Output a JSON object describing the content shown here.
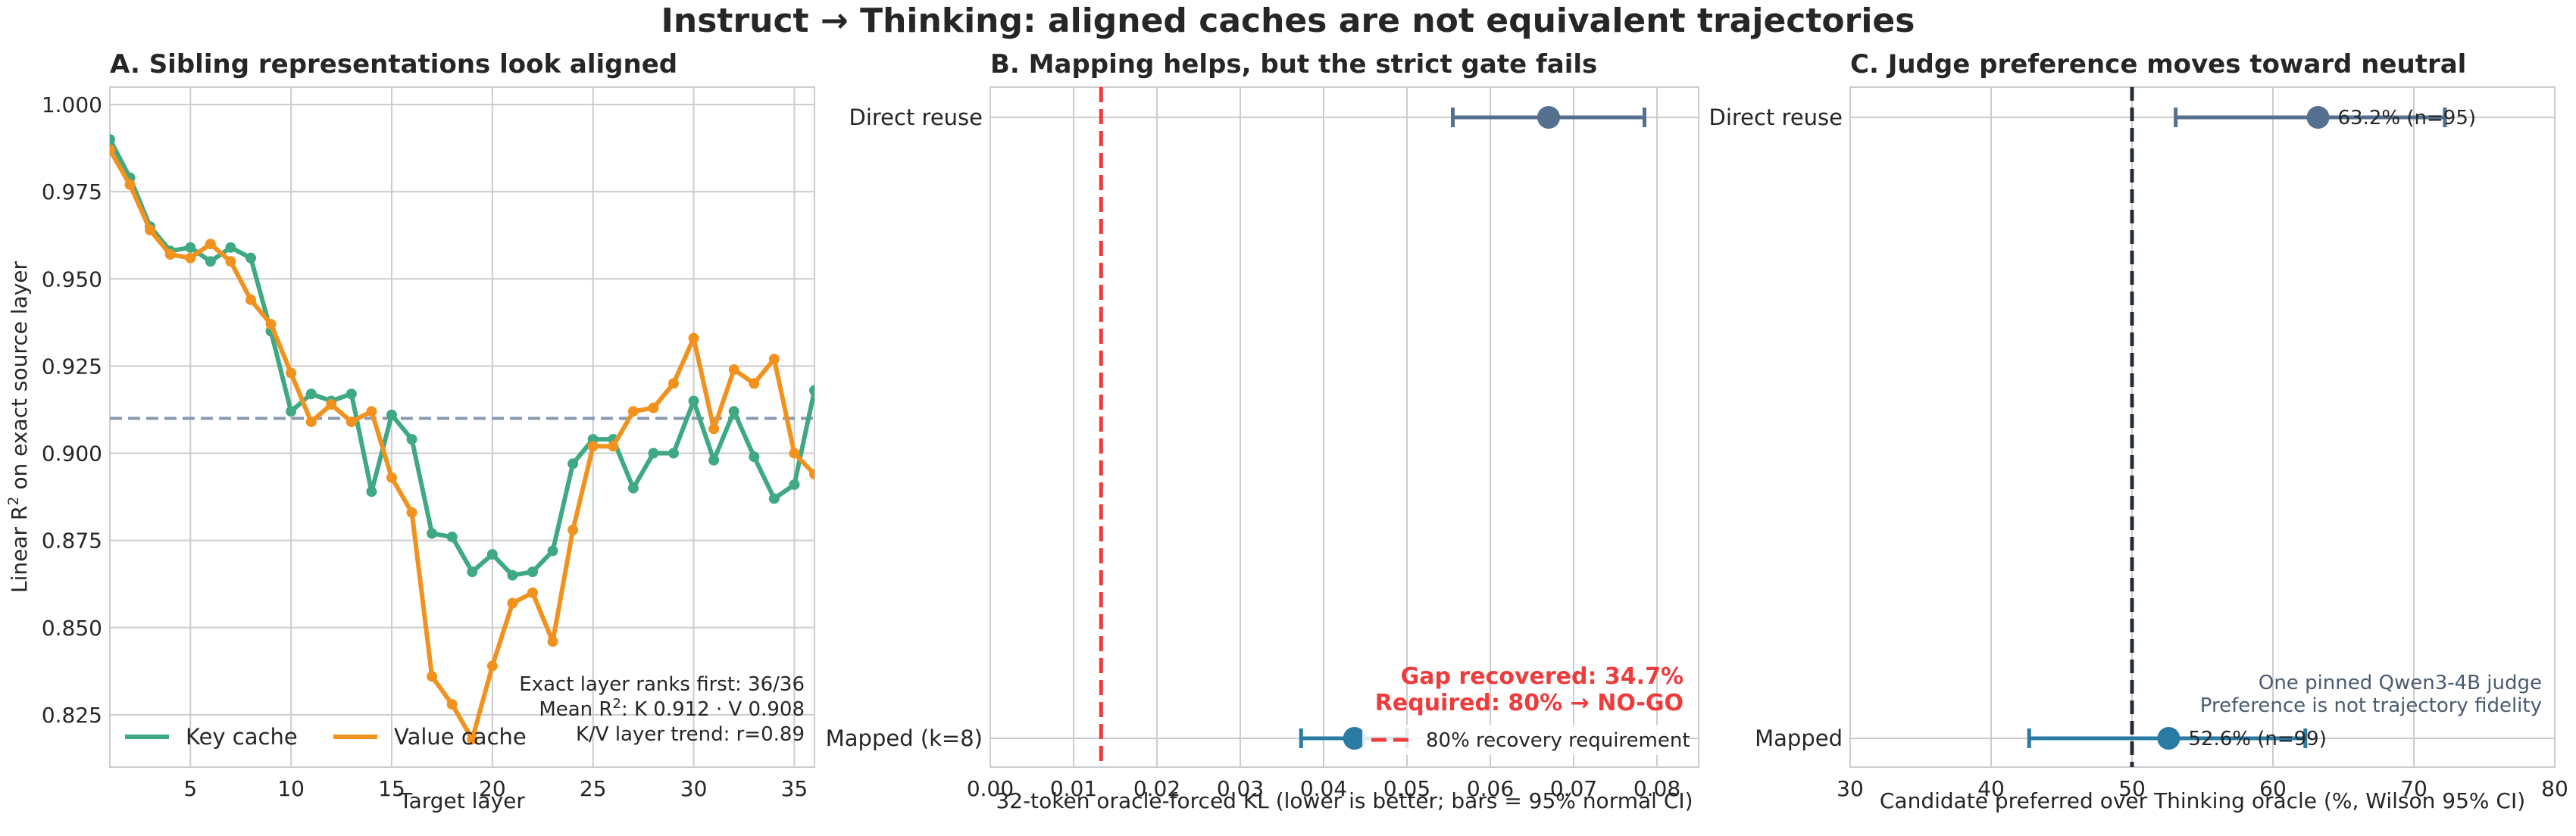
{
  "suptitle": "Instruct → Thinking: aligned caches are not equivalent trajectories",
  "chart_data": [
    {
      "panel": "A",
      "type": "line",
      "title": "A. Sibling representations look aligned",
      "xlabel": "Target layer",
      "ylabel": "Linear R² on exact source layer",
      "xlim": [
        1,
        36
      ],
      "ylim": [
        0.81,
        1.005
      ],
      "xticks": [
        5,
        10,
        15,
        20,
        25,
        30,
        35
      ],
      "yticks": [
        0.825,
        0.85,
        0.875,
        0.9,
        0.925,
        0.95,
        0.975,
        1.0
      ],
      "grid": true,
      "reference_line": {
        "y": 0.91,
        "style": "dashed"
      },
      "x": [
        1,
        2,
        3,
        4,
        5,
        6,
        7,
        8,
        9,
        10,
        11,
        12,
        13,
        14,
        15,
        16,
        17,
        18,
        19,
        20,
        21,
        22,
        23,
        24,
        25,
        26,
        27,
        28,
        29,
        30,
        31,
        32,
        33,
        34,
        35,
        36
      ],
      "series": [
        {
          "name": "Key cache",
          "color": "#3fa984",
          "values": [
            0.99,
            0.979,
            0.965,
            0.958,
            0.959,
            0.955,
            0.959,
            0.956,
            0.935,
            0.912,
            0.917,
            0.915,
            0.917,
            0.889,
            0.911,
            0.904,
            0.877,
            0.876,
            0.866,
            0.871,
            0.865,
            0.866,
            0.872,
            0.897,
            0.904,
            0.904,
            0.89,
            0.9,
            0.9,
            0.915,
            0.898,
            0.912,
            0.899,
            0.887,
            0.891,
            0.918
          ]
        },
        {
          "name": "Value cache",
          "color": "#f2921e",
          "values": [
            0.987,
            0.977,
            0.964,
            0.957,
            0.956,
            0.96,
            0.955,
            0.944,
            0.937,
            0.923,
            0.909,
            0.914,
            0.909,
            0.912,
            0.893,
            0.883,
            0.836,
            0.828,
            0.818,
            0.839,
            0.857,
            0.86,
            0.846,
            0.878,
            0.902,
            0.902,
            0.912,
            0.913,
            0.92,
            0.933,
            0.907,
            0.924,
            0.92,
            0.927,
            0.9,
            0.894
          ]
        }
      ],
      "legend": "lower-left",
      "annotation": [
        "Exact layer ranks first: 36/36",
        "Mean R²: K 0.912 · V 0.908",
        "K/V layer trend: r=0.89"
      ]
    },
    {
      "panel": "B",
      "type": "scatter",
      "title": "B. Mapping helps, but the strict gate fails",
      "xlabel": "32-token oracle-forced KL (lower is better; bars = 95% normal CI)",
      "xlim": [
        0,
        0.085
      ],
      "xticks": [
        0.0,
        0.01,
        0.02,
        0.03,
        0.04,
        0.05,
        0.06,
        0.07,
        0.08
      ],
      "xtick_labels": [
        "0.00",
        "0.01",
        "0.02",
        "0.03",
        "0.04",
        "0.05",
        "0.06",
        "0.07",
        "0.08"
      ],
      "categories": [
        "Direct reuse",
        "Mapped (k=8)"
      ],
      "points": [
        {
          "label": "Direct reuse",
          "value": 0.067,
          "ci": [
            0.0555,
            0.0785
          ],
          "color": "#556f8e"
        },
        {
          "label": "Mapped (k=8)",
          "value": 0.0437,
          "ci": [
            0.0373,
            0.05
          ],
          "color": "#2a7ba3"
        }
      ],
      "threshold": {
        "x": 0.0133,
        "color": "#ee3b3b",
        "legend": "80% recovery requirement"
      },
      "annotation": [
        "Gap recovered: 34.7%",
        "Required: 80%  →  NO-GO"
      ]
    },
    {
      "panel": "C",
      "type": "scatter",
      "title": "C. Judge preference moves toward neutral",
      "xlabel": "Candidate preferred over Thinking oracle (%, Wilson 95% CI)",
      "xlim": [
        30,
        80
      ],
      "xticks": [
        30,
        40,
        50,
        60,
        70,
        80
      ],
      "categories": [
        "Direct reuse",
        "Mapped"
      ],
      "points": [
        {
          "label": "Direct reuse",
          "value": 63.2,
          "ci": [
            53.1,
            72.2
          ],
          "color": "#556f8e",
          "text": "63.2%  (n=95)"
        },
        {
          "label": "Mapped",
          "value": 52.6,
          "ci": [
            42.7,
            62.3
          ],
          "color": "#2a7ba3",
          "text": "52.6%  (n=99)"
        }
      ],
      "reference_line": {
        "x": 50,
        "style": "dashed"
      },
      "annotation": [
        "One pinned Qwen3-4B judge",
        "Preference is not trajectory fidelity"
      ]
    }
  ]
}
